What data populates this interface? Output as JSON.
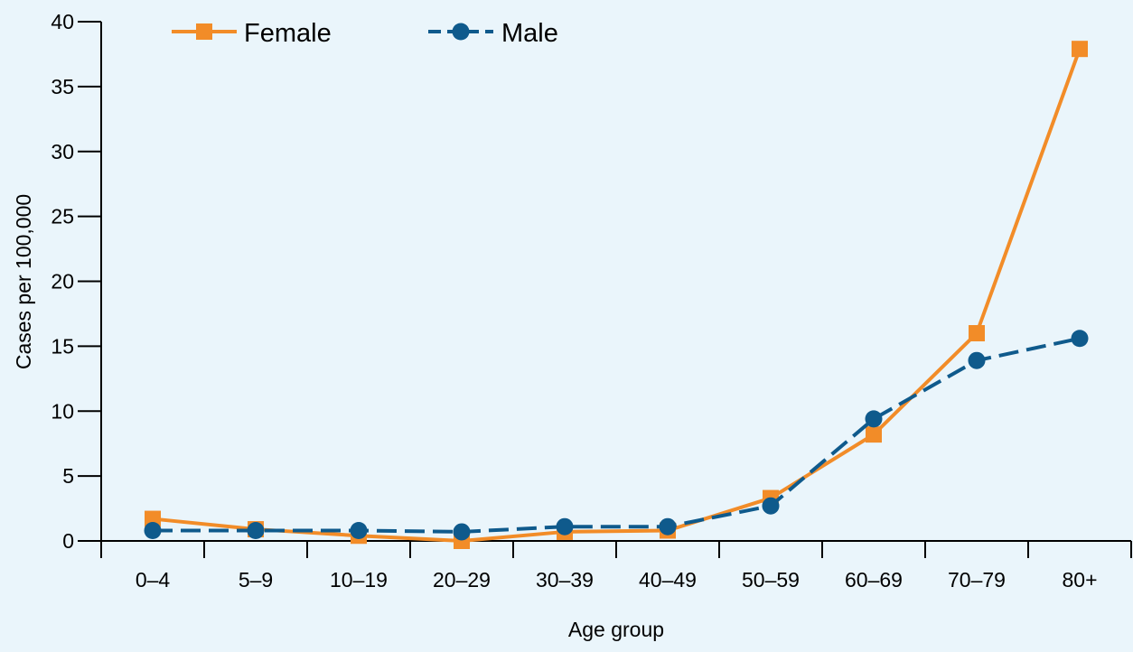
{
  "chart_data": {
    "type": "line",
    "categories": [
      "0–4",
      "5–9",
      "10–19",
      "20–29",
      "30–39",
      "40–49",
      "50–59",
      "60–69",
      "70–79",
      "80+"
    ],
    "series": [
      {
        "name": "Female",
        "values": [
          1.7,
          0.9,
          0.4,
          0.0,
          0.7,
          0.8,
          3.3,
          8.2,
          16.0,
          37.9
        ],
        "color": "#f28c28",
        "line_style": "solid",
        "marker": "square"
      },
      {
        "name": "Male",
        "values": [
          0.8,
          0.8,
          0.8,
          0.7,
          1.1,
          1.1,
          2.7,
          9.4,
          13.9,
          15.6
        ],
        "color": "#0f5a8c",
        "line_style": "dashed",
        "marker": "circle"
      }
    ],
    "title": "",
    "xlabel": "Age group",
    "ylabel": "Cases per 100,000",
    "ylim": [
      0,
      40
    ],
    "yticks": [
      0,
      5,
      10,
      15,
      20,
      25,
      30,
      35,
      40
    ],
    "grid": false,
    "legend_position": "top",
    "background_color": "#eaf5fb",
    "axis_color": "#000000"
  }
}
